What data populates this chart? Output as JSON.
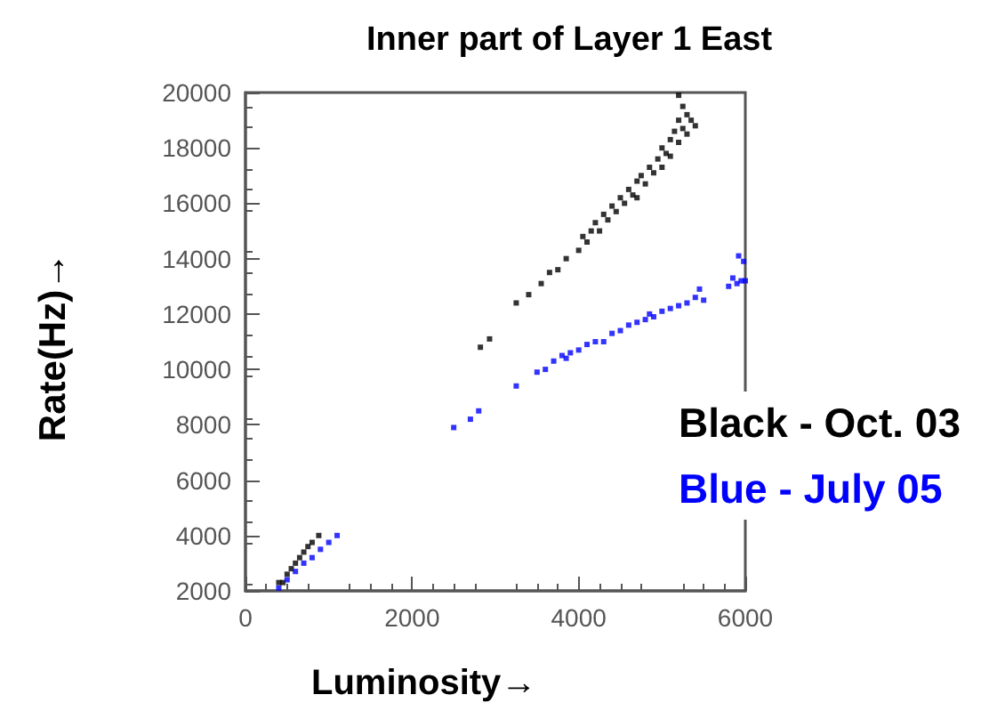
{
  "chart_data": {
    "type": "scatter",
    "title": "Inner part of Layer 1 East",
    "xlabel": "Luminosity→",
    "ylabel": "Rate(Hz)→",
    "xlim": [
      0,
      6000
    ],
    "xticks": [
      0,
      2000,
      4000,
      6000
    ],
    "ylim": [
      2000,
      20000
    ],
    "yticks": [
      2000,
      4000,
      6000,
      8000,
      10000,
      12000,
      14000,
      16000,
      18000,
      20000
    ],
    "grid": false,
    "legend": "right",
    "marker": "square",
    "series": [
      {
        "name": "Black - Oct. 03",
        "color": "#000000",
        "x": [
          400,
          450,
          500,
          550,
          600,
          650,
          700,
          750,
          800,
          880,
          2820,
          2930,
          3250,
          3400,
          3550,
          3650,
          3750,
          3850,
          4000,
          4050,
          4100,
          4150,
          4200,
          4250,
          4300,
          4350,
          4400,
          4450,
          4500,
          4550,
          4600,
          4650,
          4700,
          4700,
          4750,
          4800,
          4850,
          4900,
          4950,
          5000,
          5000,
          5050,
          5100,
          5100,
          5150,
          5200,
          5200,
          5250,
          5250,
          5300,
          5300,
          5350,
          5200,
          5400
        ],
        "values": [
          2300,
          2300,
          2600,
          2800,
          3000,
          3200,
          3400,
          3600,
          3750,
          4000,
          10800,
          11100,
          12400,
          12700,
          13100,
          13500,
          13600,
          14000,
          14300,
          14800,
          14600,
          15000,
          15300,
          15000,
          15600,
          15400,
          15900,
          15700,
          16200,
          16000,
          16500,
          16300,
          16800,
          16200,
          17000,
          16700,
          17300,
          17100,
          17600,
          17300,
          18000,
          17800,
          18300,
          17700,
          18600,
          18200,
          19000,
          18700,
          19500,
          19200,
          18500,
          19000,
          19900,
          18800
        ]
      },
      {
        "name": "Blue - July 05",
        "color": "#0000ff",
        "x": [
          400,
          500,
          600,
          700,
          800,
          900,
          1000,
          1100,
          2500,
          2700,
          2800,
          3250,
          3500,
          3600,
          3700,
          3800,
          3850,
          3900,
          4000,
          4100,
          4200,
          4300,
          4400,
          4500,
          4600,
          4700,
          4800,
          4850,
          4900,
          5000,
          5100,
          5200,
          5300,
          5400,
          5450,
          5500,
          5800,
          5850,
          5900,
          5950,
          6000,
          5920,
          5980
        ],
        "values": [
          2100,
          2400,
          2700,
          3000,
          3200,
          3500,
          3750,
          4000,
          7900,
          8200,
          8500,
          9400,
          9900,
          10000,
          10300,
          10500,
          10400,
          10600,
          10700,
          10900,
          11000,
          11000,
          11300,
          11400,
          11600,
          11700,
          11800,
          12000,
          11900,
          12100,
          12200,
          12300,
          12400,
          12600,
          12900,
          12500,
          13000,
          13300,
          13100,
          13200,
          13200,
          14100,
          13900
        ]
      }
    ]
  }
}
